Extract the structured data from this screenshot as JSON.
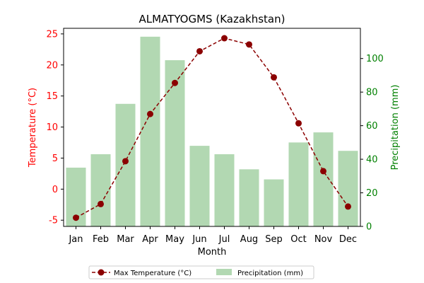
{
  "chart_data": {
    "type": "bar+line",
    "title": "ALMATYOGMS (Kazakhstan)",
    "xlabel": "Month",
    "categories": [
      "Jan",
      "Feb",
      "Mar",
      "Apr",
      "May",
      "Jun",
      "Jul",
      "Aug",
      "Sep",
      "Oct",
      "Nov",
      "Dec"
    ],
    "temperature": {
      "name": "Max Temperature (°C)",
      "axis_label": "Temperature (°C)",
      "color": "#8b0000",
      "axis_color": "#ff0000",
      "ylim": [
        -6,
        25.9
      ],
      "ticks": [
        -5,
        0,
        5,
        10,
        15,
        20,
        25
      ],
      "values": [
        -4.6,
        -2.4,
        4.5,
        12.1,
        17.1,
        22.2,
        24.3,
        23.3,
        18.0,
        10.6,
        2.9,
        -2.8
      ]
    },
    "precipitation": {
      "name": "Precipitation (mm)",
      "axis_label": "Precipitation (mm)",
      "color": "#b2d8b2",
      "axis_color": "#008000",
      "ylim": [
        0,
        118
      ],
      "ticks": [
        0,
        20,
        40,
        60,
        80,
        100
      ],
      "values": [
        35,
        43,
        73,
        113,
        99,
        48,
        43,
        34,
        28,
        50,
        56,
        45
      ]
    },
    "legend_position": "bottom-center",
    "grid": false
  }
}
